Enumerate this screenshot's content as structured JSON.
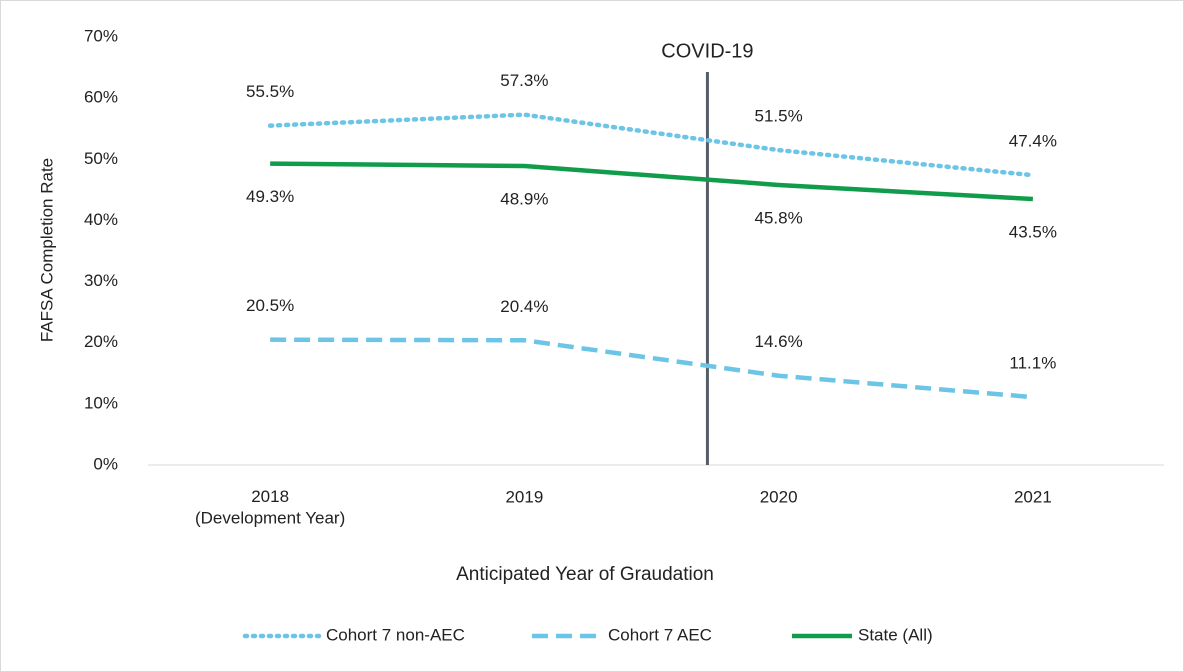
{
  "chart_data": {
    "type": "line",
    "categories": [
      "2018\n(Development Year)",
      "2019",
      "2020",
      "2021"
    ],
    "series": [
      {
        "name": "Cohort 7 non-AEC",
        "color": "#6cc4e6",
        "style": "dotted",
        "label_position": "above",
        "values": [
          55.5,
          57.3,
          51.5,
          47.4
        ],
        "value_labels": [
          "55.5%",
          "57.3%",
          "51.5%",
          "47.4%"
        ]
      },
      {
        "name": "Cohort 7 AEC",
        "color": "#6cc4e6",
        "style": "dashed",
        "label_position": "above",
        "values": [
          20.5,
          20.4,
          14.6,
          11.1
        ],
        "value_labels": [
          "20.5%",
          "20.4%",
          "14.6%",
          "11.1%"
        ]
      },
      {
        "name": "State (All)",
        "color": "#119c4b",
        "style": "solid",
        "label_position": "below",
        "values": [
          49.3,
          48.9,
          45.8,
          43.5
        ],
        "value_labels": [
          "49.3%",
          "48.9%",
          "45.8%",
          "43.5%"
        ]
      }
    ],
    "ylim": [
      0,
      70
    ],
    "yticks": [
      {
        "value": 0,
        "label": "0%"
      },
      {
        "value": 10,
        "label": "10%"
      },
      {
        "value": 20,
        "label": "20%"
      },
      {
        "value": 30,
        "label": "30%"
      },
      {
        "value": 40,
        "label": "40%"
      },
      {
        "value": 50,
        "label": "50%"
      },
      {
        "value": 60,
        "label": "60%"
      },
      {
        "value": 70,
        "label": "70%"
      }
    ],
    "xlabel": "Anticipated Year of Graudation",
    "ylabel": "FAFSA Completion Rate",
    "annotations": [
      {
        "text": "COVID-19"
      }
    ],
    "legend": "bottom"
  }
}
